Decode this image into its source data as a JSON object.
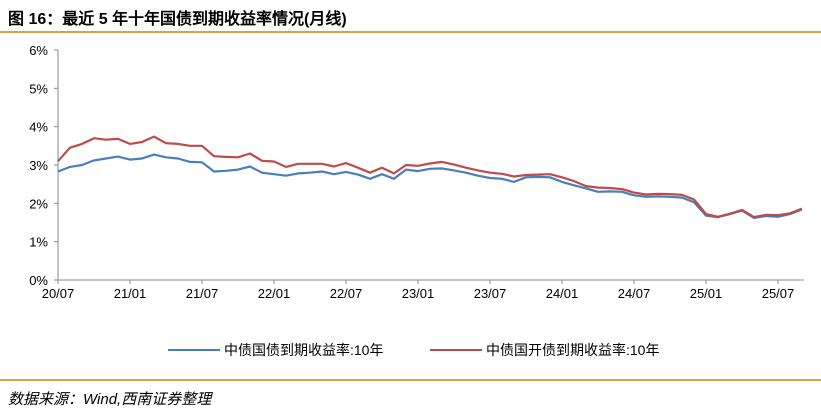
{
  "title": "图 16：最近 5 年十年国债到期收益率情况(月线)",
  "source": "数据来源：Wind,西南证券整理",
  "colors": {
    "series1": "#4a7ebb",
    "series2": "#be4b48",
    "rule": "#d9a044"
  },
  "chart_data": {
    "type": "line",
    "title": "最近 5 年十年国债到期收益率情况(月线)",
    "xlabel": "",
    "ylabel": "",
    "ylim": [
      0,
      6
    ],
    "yticks": [
      "0%",
      "1%",
      "2%",
      "3%",
      "4%",
      "5%",
      "6%"
    ],
    "xtick_labels": [
      "20/07",
      "21/01",
      "21/07",
      "22/01",
      "22/07",
      "23/01",
      "23/07",
      "24/01",
      "24/07",
      "25/01",
      "25/07"
    ],
    "x_start": "2020-07",
    "x_end": "2025-09",
    "x_step": "month",
    "legend_position": "bottom",
    "grid": false,
    "series": [
      {
        "name": "中债国债到期收益率:10年",
        "color": "#4a7ebb",
        "values": [
          2.83,
          2.95,
          3.0,
          3.12,
          3.17,
          3.22,
          3.14,
          3.17,
          3.27,
          3.2,
          3.17,
          3.08,
          3.07,
          2.83,
          2.85,
          2.88,
          2.96,
          2.8,
          2.76,
          2.72,
          2.78,
          2.8,
          2.83,
          2.76,
          2.82,
          2.75,
          2.64,
          2.76,
          2.64,
          2.88,
          2.84,
          2.9,
          2.91,
          2.86,
          2.8,
          2.72,
          2.66,
          2.64,
          2.56,
          2.68,
          2.69,
          2.68,
          2.56,
          2.47,
          2.39,
          2.3,
          2.31,
          2.3,
          2.21,
          2.17,
          2.18,
          2.17,
          2.15,
          2.03,
          1.68,
          1.64,
          1.72,
          1.81,
          1.62,
          1.67,
          1.65,
          1.72,
          1.84
        ]
      },
      {
        "name": "中债国开债到期收益率:10年",
        "color": "#be4b48",
        "values": [
          3.1,
          3.45,
          3.55,
          3.7,
          3.66,
          3.68,
          3.55,
          3.6,
          3.74,
          3.57,
          3.55,
          3.5,
          3.5,
          3.23,
          3.21,
          3.2,
          3.3,
          3.11,
          3.09,
          2.95,
          3.03,
          3.03,
          3.03,
          2.96,
          3.05,
          2.93,
          2.8,
          2.93,
          2.78,
          3.0,
          2.98,
          3.04,
          3.08,
          3.01,
          2.93,
          2.86,
          2.8,
          2.77,
          2.7,
          2.74,
          2.75,
          2.76,
          2.68,
          2.58,
          2.45,
          2.41,
          2.4,
          2.37,
          2.28,
          2.23,
          2.25,
          2.24,
          2.22,
          2.1,
          1.72,
          1.65,
          1.73,
          1.83,
          1.64,
          1.7,
          1.69,
          1.74,
          1.86
        ]
      }
    ]
  }
}
